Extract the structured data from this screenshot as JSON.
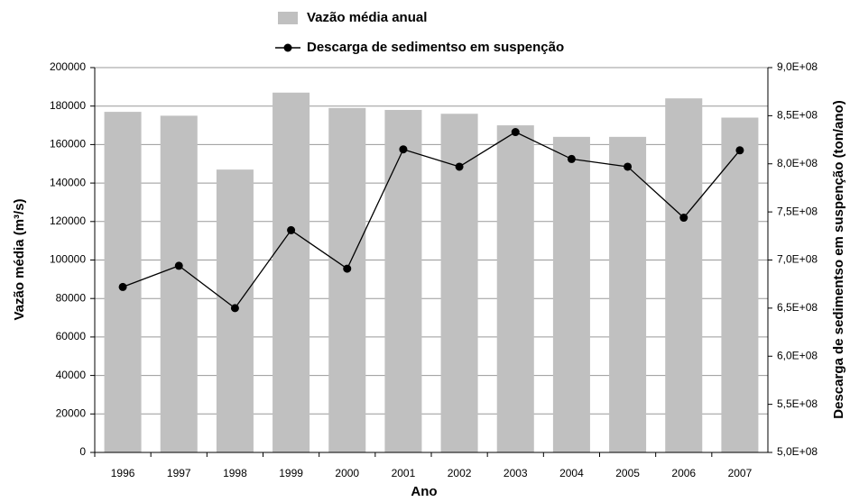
{
  "chart_data": {
    "type": "combo",
    "xlabel": "Ano",
    "ylabel": "Vazão média (m³/s)",
    "y2label": "Descarga de sedimentso em suspenção (ton/ano)",
    "categories": [
      "1996",
      "1997",
      "1998",
      "1999",
      "2000",
      "2001",
      "2002",
      "2003",
      "2004",
      "2005",
      "2006",
      "2007"
    ],
    "series": [
      {
        "name": "Vazão média anual",
        "type": "bar",
        "axis": "y",
        "color": "#c0c0c0",
        "values": [
          177000,
          175000,
          147000,
          187000,
          179000,
          178000,
          176000,
          170000,
          164000,
          164000,
          184000,
          174000
        ]
      },
      {
        "name": "Descarga de sedimentso em suspenção",
        "type": "line",
        "axis": "y2",
        "color": "#000000",
        "values": [
          672000000,
          694000000,
          650000000,
          731000000,
          691000000,
          815000000,
          797000000,
          833000000,
          805000000,
          797000000,
          744000000,
          814000000
        ]
      }
    ],
    "ylim": [
      0,
      200000
    ],
    "yticks": [
      0,
      20000,
      40000,
      60000,
      80000,
      100000,
      120000,
      140000,
      160000,
      180000,
      200000
    ],
    "y2lim": [
      500000000,
      900000000
    ],
    "y2ticks": [
      {
        "value": 500000000,
        "label": "5,0E+08"
      },
      {
        "value": 550000000,
        "label": "5,5E+08"
      },
      {
        "value": 600000000,
        "label": "6,0E+08"
      },
      {
        "value": 650000000,
        "label": "6,5E+08"
      },
      {
        "value": 700000000,
        "label": "7,0E+08"
      },
      {
        "value": 750000000,
        "label": "7,5E+08"
      },
      {
        "value": 800000000,
        "label": "8,0E+08"
      },
      {
        "value": 850000000,
        "label": "8,5E+08"
      },
      {
        "value": 900000000,
        "label": "9,0E+08"
      }
    ],
    "grid": true
  }
}
